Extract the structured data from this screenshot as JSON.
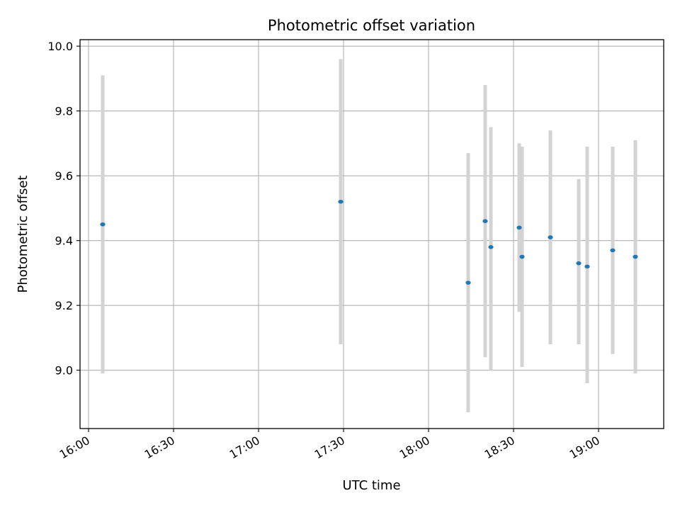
{
  "chart_data": {
    "type": "scatter",
    "title": "Photometric offset variation",
    "xlabel": "UTC time",
    "ylabel": "Photometric offset",
    "x_ticks": [
      "16:00",
      "16:30",
      "17:00",
      "17:30",
      "18:00",
      "18:30",
      "19:00"
    ],
    "y_ticks": [
      "9.0",
      "9.2",
      "9.4",
      "9.6",
      "9.8",
      "10.0"
    ],
    "xlim": [
      "15:57",
      "19:23"
    ],
    "ylim": [
      8.82,
      10.02
    ],
    "grid": true,
    "colors": {
      "point": "#1f77b4",
      "errorbar": "#d3d3d3",
      "grid": "#b0b0b0"
    },
    "points": [
      {
        "time": "16:05",
        "y": 9.45,
        "err_low": 8.99,
        "err_high": 9.91
      },
      {
        "time": "17:29",
        "y": 9.52,
        "err_low": 9.08,
        "err_high": 9.96
      },
      {
        "time": "18:14",
        "y": 9.27,
        "err_low": 8.87,
        "err_high": 9.67
      },
      {
        "time": "18:20",
        "y": 9.46,
        "err_low": 9.04,
        "err_high": 9.88
      },
      {
        "time": "18:22",
        "y": 9.38,
        "err_low": 9.0,
        "err_high": 9.75
      },
      {
        "time": "18:32",
        "y": 9.44,
        "err_low": 9.18,
        "err_high": 9.7
      },
      {
        "time": "18:33",
        "y": 9.35,
        "err_low": 9.01,
        "err_high": 9.69
      },
      {
        "time": "18:43",
        "y": 9.41,
        "err_low": 9.08,
        "err_high": 9.74
      },
      {
        "time": "18:53",
        "y": 9.33,
        "err_low": 9.08,
        "err_high": 9.59
      },
      {
        "time": "18:56",
        "y": 9.32,
        "err_low": 8.96,
        "err_high": 9.69
      },
      {
        "time": "19:05",
        "y": 9.37,
        "err_low": 9.05,
        "err_high": 9.69
      },
      {
        "time": "19:13",
        "y": 9.35,
        "err_low": 8.99,
        "err_high": 9.71
      }
    ]
  }
}
